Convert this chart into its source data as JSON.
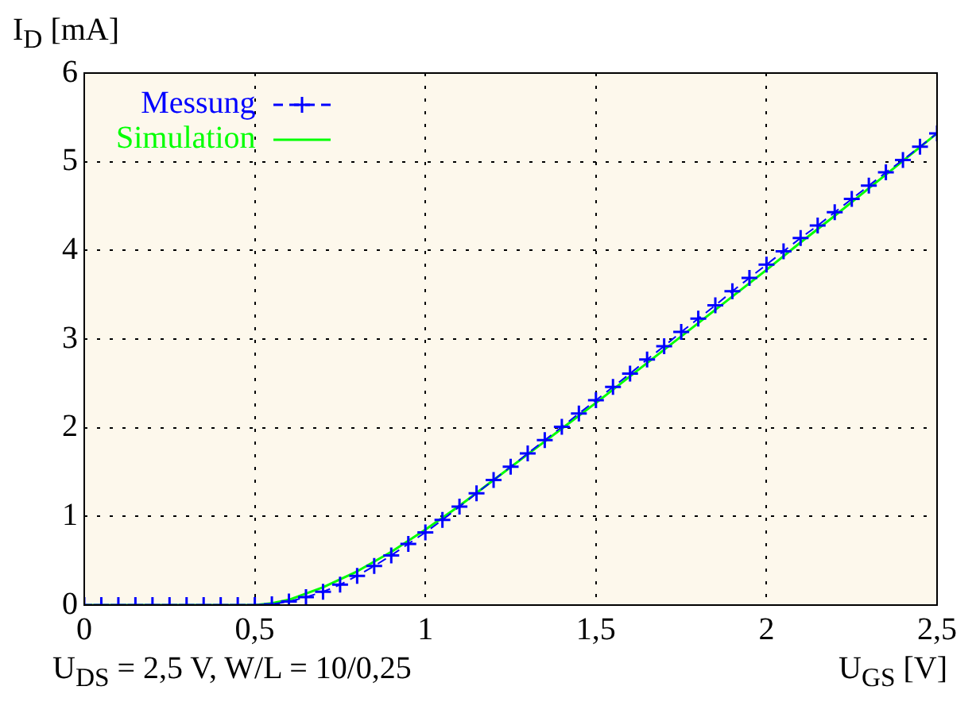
{
  "chart_data": {
    "type": "line",
    "xlabel": "U$_{GS}$ [V]",
    "ylabel": "I$_{D}$ [mA]",
    "annotations": [
      "U$_{DS}$ = 2,5 V, W/L = 10/0,25"
    ],
    "xlim": [
      0,
      2.5
    ],
    "xticks": [
      0,
      {
        "value": 0.5,
        "label": "0,5"
      },
      1,
      {
        "value": 1.5,
        "label": "1,5"
      },
      2,
      {
        "value": 2.5,
        "label": "2,5"
      }
    ],
    "ylim": [
      0,
      6
    ],
    "yticks": [
      0,
      1,
      2,
      3,
      4,
      5,
      6
    ],
    "grid": true,
    "legend": "top left",
    "series": [
      {
        "name": "Messung",
        "color": "#0000ff",
        "marker": "cross",
        "line_style": "dashed",
        "x": [
          0,
          0.05,
          0.1,
          0.15,
          0.2,
          0.25,
          0.3,
          0.35,
          0.4,
          0.45,
          0.5,
          0.55,
          0.6,
          0.65,
          0.7,
          0.75,
          0.8,
          0.85,
          0.9,
          0.95,
          1,
          1.05,
          1.1,
          1.15,
          1.2,
          1.25,
          1.3,
          1.35,
          1.4,
          1.45,
          1.5,
          1.55,
          1.6,
          1.65,
          1.7,
          1.75,
          1.8,
          1.85,
          1.9,
          1.95,
          2,
          2.05,
          2.1,
          2.15,
          2.2,
          2.25,
          2.3,
          2.35,
          2.4,
          2.45,
          2.5
        ],
        "values": [
          0,
          0,
          0,
          0,
          0,
          0,
          0,
          0,
          0,
          0,
          0,
          0.01,
          0.04,
          0.09,
          0.15,
          0.23,
          0.33,
          0.44,
          0.56,
          0.69,
          0.82,
          0.96,
          1.11,
          1.26,
          1.41,
          1.56,
          1.71,
          1.86,
          2.01,
          2.16,
          2.31,
          2.46,
          2.61,
          2.77,
          2.92,
          3.08,
          3.23,
          3.38,
          3.54,
          3.69,
          3.84,
          3.99,
          4.14,
          4.28,
          4.43,
          4.58,
          4.73,
          4.88,
          5.02,
          5.17,
          5.32
        ]
      },
      {
        "name": "Simulation",
        "color": "#00ff00",
        "marker": "none",
        "line_style": "solid",
        "x": [
          0,
          0.5,
          0.55,
          0.6,
          0.7,
          0.8,
          0.9,
          1,
          1.1,
          1.2,
          1.3,
          1.4,
          1.5,
          1.6,
          1.7,
          1.8,
          1.9,
          2,
          2.1,
          2.2,
          2.3,
          2.4,
          2.5
        ],
        "values": [
          0,
          0,
          0.02,
          0.06,
          0.2,
          0.38,
          0.6,
          0.85,
          1.12,
          1.41,
          1.7,
          1.99,
          2.28,
          2.58,
          2.88,
          3.18,
          3.48,
          3.78,
          4.09,
          4.39,
          4.7,
          5.01,
          5.32
        ]
      }
    ]
  }
}
